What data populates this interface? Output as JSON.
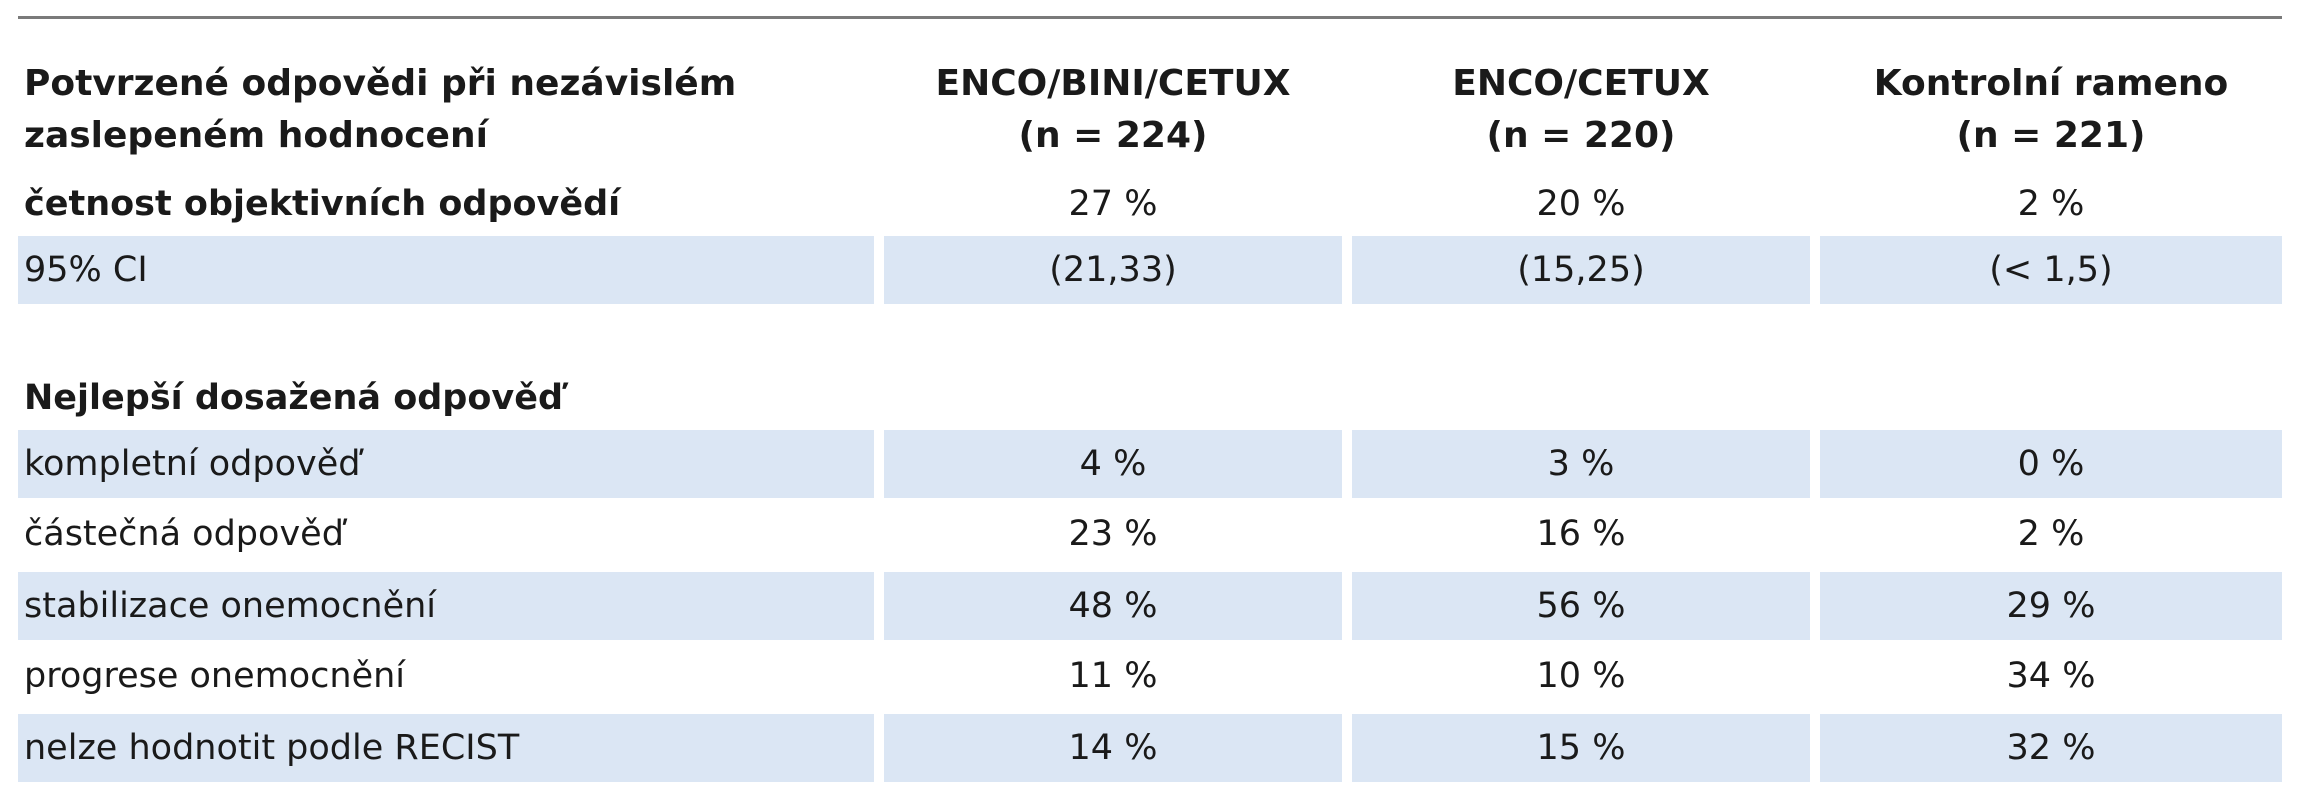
{
  "table": {
    "header": {
      "col0_line1": "Potvrzené odpovědi při nezávislém",
      "col0_line2": "zaslepeném hodnocení",
      "col1_line1": "ENCO/BINI/CETUX",
      "col1_line2": "(n = 224)",
      "col2_line1": "ENCO/CETUX",
      "col2_line2": "(n = 220)",
      "col3_line1": "Kontrolní rameno",
      "col3_line2": "(n = 221)"
    },
    "orr": {
      "label": "četnost objektivních odpovědí",
      "values": [
        "27 %",
        "20 %",
        "2 %"
      ]
    },
    "ci": {
      "label": "95% CI",
      "values": [
        "(21,33)",
        "(15,25)",
        "(< 1,5)"
      ]
    },
    "section_title": "Nejlepší dosažená odpověď",
    "rows": [
      {
        "label": "kompletní odpověď",
        "values": [
          "4 %",
          "3 %",
          "0 %"
        ]
      },
      {
        "label": "částečná odpověď",
        "values": [
          "23 %",
          "16 %",
          "2 %"
        ]
      },
      {
        "label": "stabilizace onemocnění",
        "values": [
          "48 %",
          "56 %",
          "29 %"
        ]
      },
      {
        "label": "progrese onemocnění",
        "values": [
          "11 %",
          "10 %",
          "34 %"
        ]
      },
      {
        "label": "nelze hodnotit podle RECIST",
        "values": [
          "14 %",
          "15 %",
          "32 %"
        ]
      }
    ]
  }
}
